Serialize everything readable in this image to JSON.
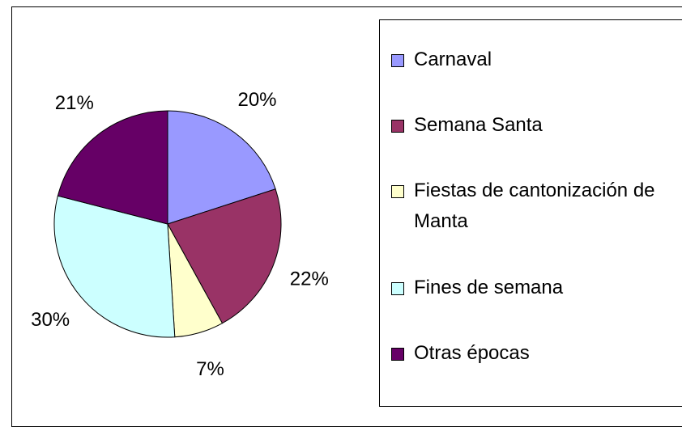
{
  "chart_data": {
    "type": "pie",
    "categories": [
      "Carnaval",
      "Semana Santa",
      "Fiestas de cantonización de Manta",
      "Fines de semana",
      "Otras épocas"
    ],
    "values": [
      20,
      22,
      7,
      30,
      21
    ],
    "value_labels": [
      "20%",
      "22%",
      "7%",
      "30%",
      "21%"
    ],
    "colors": [
      "#9999ff",
      "#993366",
      "#ffffcc",
      "#ccffff",
      "#660066"
    ],
    "legend": "right"
  }
}
